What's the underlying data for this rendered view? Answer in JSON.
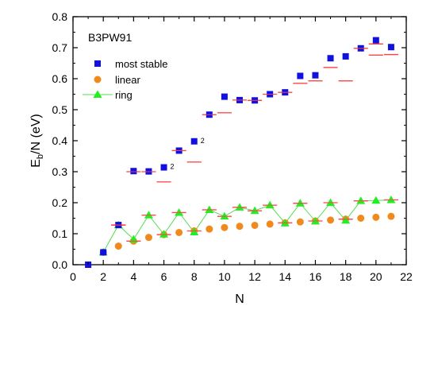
{
  "chart_data": {
    "type": "scatter",
    "label": "B3PW91",
    "xlabel": "N",
    "ylabel_main": "E",
    "ylabel_sub": "b",
    "ylabel_rest": "/N (eV)",
    "xlim": [
      0,
      22
    ],
    "ylim": [
      0.0,
      0.8
    ],
    "xticks": [
      "0",
      "2",
      "4",
      "6",
      "8",
      "10",
      "12",
      "14",
      "16",
      "18",
      "20",
      "22"
    ],
    "yticks": [
      "0.0",
      "0.1",
      "0.2",
      "0.3",
      "0.4",
      "0.5",
      "0.6",
      "0.7",
      "0.8"
    ],
    "legend_position": "top-left",
    "colors": {
      "most_stable": "#1010e0",
      "linear": "#f08a1c",
      "ring": "#22ee22",
      "ring_line": "#55dd55",
      "dash": "#ff4444"
    },
    "series": [
      {
        "name": "most stable",
        "marker": "square",
        "x": [
          1,
          2,
          3,
          4,
          5,
          6,
          7,
          8,
          9,
          10,
          11,
          12,
          13,
          14,
          15,
          16,
          17,
          18,
          19,
          20,
          21
        ],
        "y": [
          0.0,
          0.04,
          0.128,
          0.302,
          0.301,
          0.314,
          0.368,
          0.398,
          0.484,
          0.542,
          0.531,
          0.53,
          0.55,
          0.556,
          0.609,
          0.611,
          0.666,
          0.672,
          0.698,
          0.724,
          0.702
        ]
      },
      {
        "name": "linear",
        "marker": "circle",
        "x": [
          2,
          3,
          4,
          5,
          6,
          7,
          8,
          9,
          10,
          11,
          12,
          13,
          14,
          15,
          16,
          17,
          18,
          19,
          20,
          21
        ],
        "y": [
          0.04,
          0.06,
          0.076,
          0.088,
          0.097,
          0.104,
          0.109,
          0.115,
          0.12,
          0.124,
          0.127,
          0.131,
          0.135,
          0.138,
          0.141,
          0.144,
          0.147,
          0.15,
          0.153,
          0.156
        ]
      },
      {
        "name": "ring",
        "marker": "triangle",
        "line": true,
        "x": [
          2,
          3,
          4,
          5,
          6,
          7,
          8,
          9,
          10,
          11,
          12,
          13,
          14,
          15,
          16,
          17,
          18,
          19,
          20,
          21
        ],
        "y": [
          0.04,
          0.128,
          0.082,
          0.16,
          0.098,
          0.168,
          0.105,
          0.177,
          0.156,
          0.185,
          0.174,
          0.192,
          0.134,
          0.198,
          0.14,
          0.2,
          0.143,
          0.206,
          0.207,
          0.209
        ]
      }
    ],
    "dashes": {
      "x": [
        3,
        4,
        5,
        6,
        7,
        8,
        9,
        10,
        11,
        12,
        13,
        14,
        15,
        16,
        17,
        18,
        19,
        20,
        21,
        3,
        4,
        5,
        6,
        7,
        8,
        9,
        10,
        11,
        12,
        13,
        14,
        15,
        16,
        17,
        18,
        19,
        20,
        21
      ],
      "y": [
        0.128,
        0.3,
        0.3,
        0.267,
        0.368,
        0.331,
        0.484,
        0.49,
        0.531,
        0.53,
        0.55,
        0.556,
        0.585,
        0.593,
        0.636,
        0.593,
        0.698,
        0.676,
        0.678,
        0.128,
        0.076,
        0.16,
        0.097,
        0.168,
        0.109,
        0.177,
        0.156,
        0.185,
        0.174,
        0.192,
        0.135,
        0.198,
        0.141,
        0.2,
        0.147,
        0.206,
        0.712,
        0.209
      ]
    },
    "annotations": [
      {
        "text": "2",
        "x": 6,
        "y": 0.314
      },
      {
        "text": "2",
        "x": 8,
        "y": 0.398
      }
    ]
  }
}
